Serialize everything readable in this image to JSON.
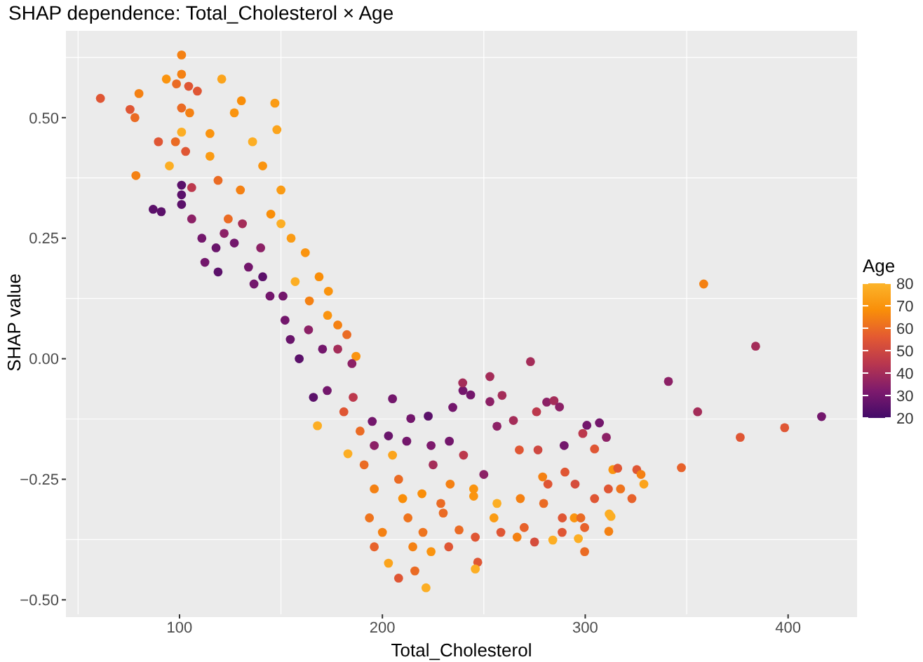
{
  "chart_data": {
    "type": "scatter",
    "title": "SHAP dependence: Total_Cholesterol × Age",
    "xlabel": "Total_Cholesterol",
    "ylabel": "SHAP value",
    "clabel": "Age",
    "xlim": [
      44,
      434
    ],
    "xticks": [
      100,
      200,
      300,
      400
    ],
    "ylim": [
      -0.53,
      0.68
    ],
    "yticks": [
      {
        "value": -0.5,
        "label": "−0.50"
      },
      {
        "value": -0.25,
        "label": "−0.25"
      },
      {
        "value": 0,
        "label": "0.00"
      },
      {
        "value": 0.25,
        "label": "0.25"
      },
      {
        "value": 0.5,
        "label": "0.50"
      }
    ],
    "grid": true,
    "marker": "circle",
    "clim": [
      20,
      80
    ],
    "cticks": [
      20,
      30,
      40,
      50,
      60,
      70,
      80
    ],
    "series": [
      {
        "x": [
          61,
          75.6,
          78,
          80,
          78.5,
          89.6,
          87,
          91,
          93.5,
          101,
          101,
          98.5,
          104.5,
          108.8,
          120.8,
          101,
          105,
          101,
          98,
          95,
          101,
          101,
          101,
          106,
          103,
          115,
          127,
          130.5,
          147,
          148,
          136,
          141,
          119,
          130,
          150,
          145,
          115,
          124,
          106,
          111,
          118,
          112.5,
          119,
          127,
          134,
          141,
          144.6,
          136.7,
          140,
          122,
          131,
          150,
          155,
          162,
          168.8,
          173.4,
          178,
          182.5,
          187,
          152,
          154.6,
          159,
          163.6,
          170.5,
          151,
          157,
          164,
          173,
          178,
          185,
          172.8,
          166,
          168,
          181,
          185.6,
          183,
          189,
          205,
          214,
          222.6,
          234.7,
          203,
          212,
          224,
          233,
          196,
          191,
          196,
          193.6,
          200,
          196,
          203,
          208,
          216,
          221.5,
          215,
          224,
          212.6,
          219.5,
          228.8,
          233.4,
          208,
          239.7,
          243.5,
          259,
          253,
          281,
          284.6,
          287.3,
          276,
          264.6,
          256.5,
          300.8,
          307,
          310.4,
          304.6,
          298.8,
          289.6,
          276.7,
          267.5,
          341,
          355.4,
          376.4,
          398.3,
          416.5,
          347.4,
          313.6,
          316,
          325.4,
          327.5,
          328.9,
          317.4,
          311.4,
          304.6,
          323,
          295,
          281.6,
          290,
          279,
          311.8,
          312.7,
          294.6,
          297.8,
          299.7,
          288.6,
          311.6,
          296.6,
          299.7,
          275,
          284,
          266.4,
          258.4,
          269.9,
          245.8,
          237.8,
          232.7,
          247,
          245.8,
          256.5,
          268,
          245,
          279.5,
          288.7,
          358.4,
          384,
          273,
          253,
          239.6,
          225,
          240,
          250,
          230,
          210,
          255,
          245,
          220,
          205,
          195
        ],
        "values": [
          0.54,
          0.517,
          0.5,
          0.55,
          0.38,
          0.45,
          0.31,
          0.305,
          0.58,
          0.63,
          0.59,
          0.57,
          0.565,
          0.555,
          0.58,
          0.52,
          0.51,
          0.47,
          0.45,
          0.4,
          0.36,
          0.34,
          0.32,
          0.355,
          0.43,
          0.467,
          0.51,
          0.535,
          0.53,
          0.475,
          0.45,
          0.4,
          0.37,
          0.35,
          0.35,
          0.3,
          0.42,
          0.29,
          0.29,
          0.25,
          0.23,
          0.2,
          0.18,
          0.24,
          0.19,
          0.17,
          0.13,
          0.155,
          0.23,
          0.26,
          0.28,
          0.28,
          0.25,
          0.22,
          0.17,
          0.14,
          0.07,
          0.05,
          0.005,
          0.08,
          0.04,
          0,
          0.06,
          0.02,
          0.13,
          0.16,
          0.12,
          0.09,
          0.02,
          -0.01,
          -0.066,
          -0.08,
          -0.139,
          -0.11,
          -0.08,
          -0.197,
          -0.15,
          -0.083,
          -0.124,
          -0.119,
          -0.101,
          -0.16,
          -0.171,
          -0.18,
          -0.171,
          -0.18,
          -0.22,
          -0.27,
          -0.33,
          -0.36,
          -0.39,
          -0.424,
          -0.455,
          -0.44,
          -0.475,
          -0.39,
          -0.4,
          -0.33,
          -0.28,
          -0.3,
          -0.26,
          -0.25,
          -0.066,
          -0.075,
          -0.076,
          -0.089,
          -0.09,
          -0.087,
          -0.1,
          -0.11,
          -0.128,
          -0.14,
          -0.138,
          -0.133,
          -0.163,
          -0.187,
          -0.155,
          -0.18,
          -0.189,
          -0.189,
          -0.047,
          -0.11,
          -0.163,
          -0.143,
          -0.12,
          -0.226,
          -0.23,
          -0.227,
          -0.23,
          -0.24,
          -0.26,
          -0.27,
          -0.27,
          -0.29,
          -0.29,
          -0.26,
          -0.26,
          -0.235,
          -0.245,
          -0.322,
          -0.327,
          -0.33,
          -0.33,
          -0.35,
          -0.36,
          -0.358,
          -0.373,
          -0.4,
          -0.38,
          -0.376,
          -0.37,
          -0.36,
          -0.35,
          -0.37,
          -0.355,
          -0.39,
          -0.422,
          -0.436,
          -0.3,
          -0.29,
          -0.285,
          -0.3,
          -0.33,
          0.155,
          0.026,
          -0.006,
          -0.037,
          -0.05,
          -0.22,
          -0.2,
          -0.24,
          -0.32,
          -0.29,
          -0.33,
          -0.27,
          -0.36,
          -0.2,
          -0.13
        ],
        "cvalues": [
          55,
          55,
          60,
          65,
          65,
          55,
          25,
          25,
          70,
          65,
          65,
          60,
          55,
          55,
          75,
          60,
          65,
          78,
          60,
          78,
          25,
          25,
          25,
          45,
          55,
          70,
          70,
          68,
          72,
          75,
          78,
          70,
          60,
          65,
          72,
          68,
          72,
          60,
          35,
          30,
          28,
          30,
          25,
          30,
          30,
          25,
          30,
          30,
          35,
          35,
          40,
          78,
          72,
          70,
          68,
          70,
          65,
          60,
          70,
          30,
          28,
          25,
          35,
          30,
          30,
          78,
          65,
          70,
          40,
          35,
          30,
          25,
          78,
          55,
          45,
          78,
          60,
          30,
          30,
          25,
          30,
          28,
          30,
          32,
          30,
          35,
          60,
          65,
          62,
          65,
          58,
          75,
          55,
          60,
          78,
          65,
          70,
          62,
          68,
          60,
          65,
          60,
          30,
          30,
          40,
          35,
          35,
          40,
          35,
          45,
          40,
          35,
          30,
          30,
          35,
          55,
          45,
          30,
          50,
          55,
          35,
          40,
          55,
          55,
          30,
          58,
          70,
          55,
          55,
          65,
          75,
          62,
          55,
          55,
          58,
          52,
          55,
          55,
          65,
          78,
          78,
          70,
          60,
          58,
          55,
          65,
          78,
          60,
          52,
          78,
          65,
          55,
          58,
          55,
          60,
          55,
          55,
          78,
          78,
          65,
          70,
          60,
          55,
          65,
          40,
          40,
          40,
          40,
          40,
          45,
          35,
          60,
          68,
          72,
          70,
          62,
          75,
          30
        ]
      }
    ]
  }
}
